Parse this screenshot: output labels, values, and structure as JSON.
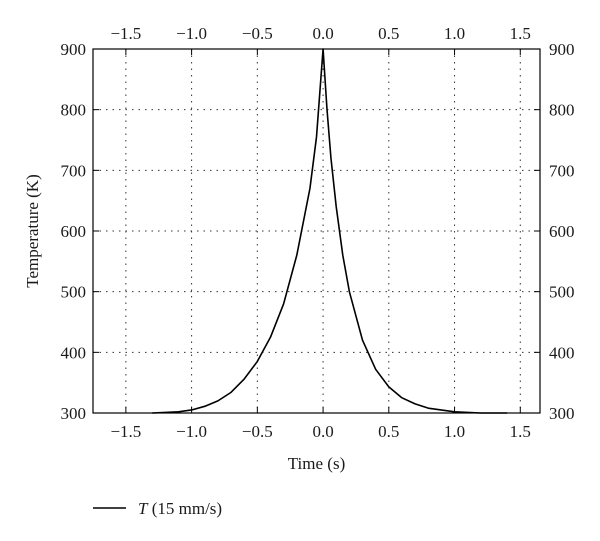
{
  "chart_data": {
    "type": "line",
    "xlabel": "Time (s)",
    "ylabel": "Temperature (K)",
    "xlim": [
      -1.75,
      1.65
    ],
    "ylim": [
      300,
      900
    ],
    "x_ticks": [
      -1.5,
      -1.0,
      -0.5,
      0.0,
      0.5,
      1.0,
      1.5
    ],
    "x_tick_labels": [
      "−1.5",
      "−1.0",
      "−0.5",
      "0.0",
      "0.5",
      "1.0",
      "1.5"
    ],
    "y_ticks": [
      300,
      400,
      500,
      600,
      700,
      800,
      900
    ],
    "y_tick_labels": [
      "300",
      "400",
      "500",
      "600",
      "700",
      "800",
      "900"
    ],
    "mirror_axes": true,
    "grid": "dotted",
    "legend_position": "bottom-left",
    "series": [
      {
        "name_italic": "T",
        "name_rest": " (15 mm/s)",
        "color": "#000000",
        "x": [
          -1.3,
          -1.1,
          -1.0,
          -0.9,
          -0.8,
          -0.7,
          -0.6,
          -0.5,
          -0.4,
          -0.3,
          -0.2,
          -0.1,
          -0.05,
          0.0,
          0.03,
          0.06,
          0.1,
          0.15,
          0.2,
          0.3,
          0.4,
          0.5,
          0.6,
          0.7,
          0.8,
          1.0,
          1.2,
          1.4
        ],
        "y": [
          300,
          302,
          305,
          311,
          320,
          334,
          356,
          385,
          425,
          480,
          560,
          670,
          755,
          900,
          800,
          720,
          640,
          560,
          500,
          420,
          372,
          343,
          325,
          315,
          308,
          302,
          300,
          300
        ]
      }
    ]
  }
}
